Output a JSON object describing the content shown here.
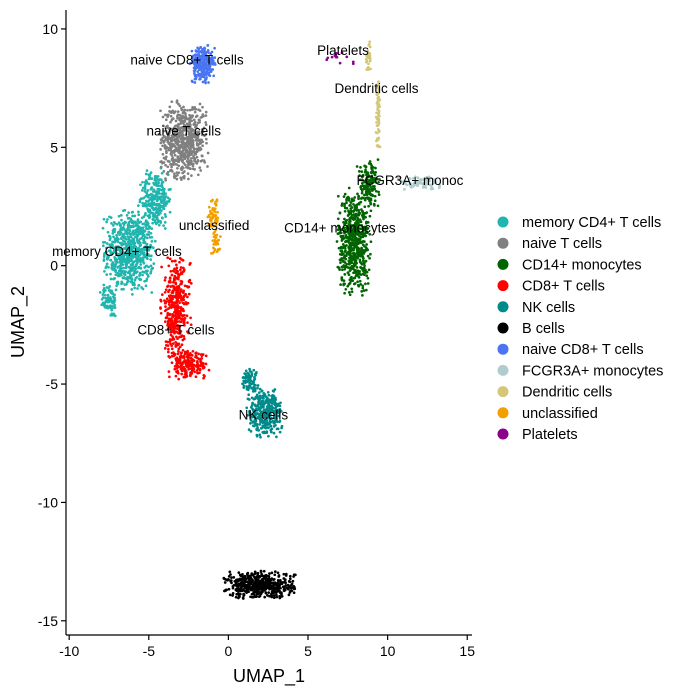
{
  "chart_data": {
    "type": "scatter",
    "xlabel": "UMAP_1",
    "ylabel": "UMAP_2",
    "xlim": [
      -10.2,
      15.3
    ],
    "ylim": [
      -15.6,
      10.8
    ],
    "x_ticks": [
      -10,
      -5,
      0,
      5,
      10,
      15
    ],
    "y_ticks": [
      10,
      5,
      0,
      -5,
      -10,
      -15
    ],
    "x_tick_labels": [
      "-10",
      "-5",
      "0",
      "5",
      "10",
      "15"
    ],
    "y_tick_labels": [
      "10",
      "5",
      "0",
      "-5",
      "-10",
      "-15"
    ],
    "grid": false,
    "legend_position": "right",
    "clusters": [
      {
        "name": "memory CD4+ T cells",
        "color": "#20B5AE",
        "label_pos": [
          -7.0,
          0.4
        ],
        "regions": [
          {
            "center": [
              -6.2,
              0.6
            ],
            "spread": [
              1.4,
              1.5
            ],
            "count": 700
          },
          {
            "center": [
              -4.6,
              2.8
            ],
            "spread": [
              0.9,
              1.1
            ],
            "count": 260
          },
          {
            "center": [
              -7.5,
              -1.5
            ],
            "spread": [
              0.5,
              0.6
            ],
            "count": 80
          }
        ]
      },
      {
        "name": "naive T cells",
        "color": "#808080",
        "label_pos": [
          -2.8,
          5.5
        ],
        "regions": [
          {
            "center": [
              -2.8,
              5.3
            ],
            "spread": [
              1.3,
              1.4
            ],
            "count": 650
          }
        ]
      },
      {
        "name": "CD14+ monocytes",
        "color": "#006400",
        "label_pos": [
          7.0,
          1.5
        ],
        "regions": [
          {
            "center": [
              7.9,
              1.0
            ],
            "spread": [
              0.9,
              1.9
            ],
            "count": 600
          },
          {
            "center": [
              8.8,
              3.4
            ],
            "spread": [
              0.6,
              0.9
            ],
            "count": 160
          }
        ]
      },
      {
        "name": "CD8+ T cells",
        "color": "#FF0000",
        "label_pos": [
          -3.3,
          -2.9
        ],
        "regions": [
          {
            "center": [
              -3.3,
              -1.8
            ],
            "spread": [
              0.8,
              1.8
            ],
            "count": 380
          },
          {
            "center": [
              -2.5,
              -4.2
            ],
            "spread": [
              1.1,
              0.5
            ],
            "count": 200
          }
        ]
      },
      {
        "name": "NK cells",
        "color": "#008B8B",
        "label_pos": [
          2.2,
          -6.5
        ],
        "regions": [
          {
            "center": [
              2.3,
              -6.2
            ],
            "spread": [
              1.0,
              0.9
            ],
            "count": 330
          },
          {
            "center": [
              1.3,
              -4.8
            ],
            "spread": [
              0.5,
              0.4
            ],
            "count": 70
          }
        ]
      },
      {
        "name": "B cells",
        "color": "#000000",
        "label_pos": null,
        "regions": [
          {
            "center": [
              2.0,
              -13.5
            ],
            "spread": [
              1.9,
              0.5
            ],
            "count": 500
          }
        ]
      },
      {
        "name": "naive CD8+ T cells",
        "color": "#4A75F2",
        "label_pos": [
          -1.8,
          8.3
        ],
        "regions": [
          {
            "center": [
              -1.6,
              8.5
            ],
            "spread": [
              0.7,
              0.7
            ],
            "count": 240
          }
        ]
      },
      {
        "name": "FCGR3A+ monocytes",
        "color": "#B0CCCC",
        "label_pos": [
          11.5,
          3.3
        ],
        "regions": [
          {
            "center": [
              12.0,
              3.5
            ],
            "spread": [
              1.2,
              0.25
            ],
            "count": 80
          }
        ]
      },
      {
        "name": "Dendritic cells",
        "color": "#D4C77A",
        "label_pos": [
          9.3,
          7.1
        ],
        "regions": [
          {
            "center": [
              9.4,
              6.5
            ],
            "spread": [
              0.12,
              1.3
            ],
            "count": 60
          },
          {
            "center": [
              8.8,
              8.8
            ],
            "spread": [
              0.15,
              0.6
            ],
            "count": 30
          }
        ]
      },
      {
        "name": "unclassified",
        "color": "#F2A000",
        "label_pos": [
          -0.9,
          1.6
        ],
        "regions": [
          {
            "center": [
              -0.9,
              2.2
            ],
            "spread": [
              0.35,
              0.7
            ],
            "count": 60
          },
          {
            "center": [
              -0.8,
              0.9
            ],
            "spread": [
              0.25,
              0.4
            ],
            "count": 30
          }
        ]
      },
      {
        "name": "Platelets",
        "color": "#8B008B",
        "label_pos": [
          7.0,
          8.8
        ],
        "regions": [
          {
            "center": [
              6.9,
              8.8
            ],
            "spread": [
              0.9,
              0.25
            ],
            "count": 14
          }
        ]
      }
    ],
    "cluster_labels": [
      {
        "text": "naive CD8+ T cells",
        "x": -2.6,
        "y": 8.5
      },
      {
        "text": "Platelets",
        "x": 7.2,
        "y": 8.9
      },
      {
        "text": "Dendritic cells",
        "x": 9.3,
        "y": 7.3
      },
      {
        "text": "naive T cells",
        "x": -2.8,
        "y": 5.5
      },
      {
        "text": "FCGR3A+ monoc",
        "x": 11.4,
        "y": 3.4
      },
      {
        "text": "unclassified",
        "x": -0.9,
        "y": 1.5
      },
      {
        "text": "CD14+ monocytes",
        "x": 7.0,
        "y": 1.4
      },
      {
        "text": "memory CD4+ T cells",
        "x": -7.0,
        "y": 0.4
      },
      {
        "text": "CD8+ T cells",
        "x": -3.3,
        "y": -2.9
      },
      {
        "text": "NK cells",
        "x": 2.2,
        "y": -6.5
      }
    ],
    "legend": [
      {
        "name": "memory CD4+ T cells",
        "color": "#20B5AE"
      },
      {
        "name": "naive T cells",
        "color": "#808080"
      },
      {
        "name": "CD14+ monocytes",
        "color": "#006400"
      },
      {
        "name": "CD8+ T cells",
        "color": "#FF0000"
      },
      {
        "name": "NK cells",
        "color": "#008B8B"
      },
      {
        "name": "B cells",
        "color": "#000000"
      },
      {
        "name": "naive CD8+ T cells",
        "color": "#4A75F2"
      },
      {
        "name": "FCGR3A+ monocytes",
        "color": "#B0CCCC"
      },
      {
        "name": "Dendritic cells",
        "color": "#D4C77A"
      },
      {
        "name": "unclassified",
        "color": "#F2A000"
      },
      {
        "name": "Platelets",
        "color": "#8B008B"
      }
    ]
  }
}
